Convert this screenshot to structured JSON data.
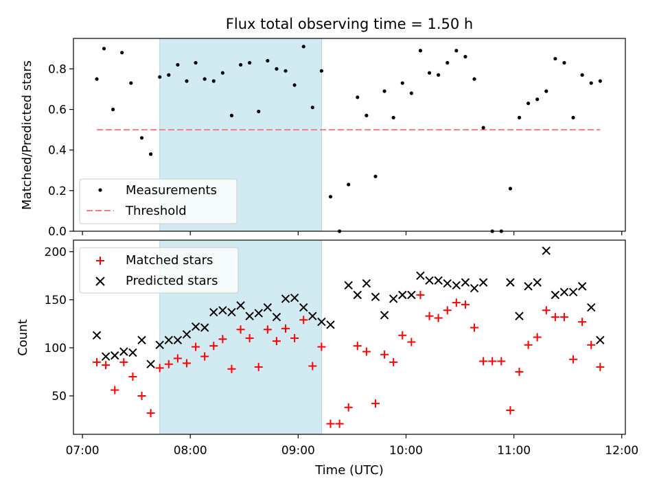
{
  "chart_data": [
    {
      "type": "scatter",
      "title": "Flux total observing time = 1.50 h",
      "ylabel": "Matched/Predicted stars",
      "xlabel": "",
      "ylim": [
        0,
        0.95
      ],
      "yticks": [
        0.0,
        0.2,
        0.4,
        0.6,
        0.8
      ],
      "legend_position": "lower left",
      "shaded_interval": {
        "start": "07:43",
        "end": "09:13",
        "color": "#add8e6"
      },
      "threshold": {
        "name": "Threshold",
        "value": 0.5,
        "x_start": "07:08",
        "x_end": "11:48",
        "color": "#f08080"
      },
      "series": [
        {
          "name": "Measurements",
          "color": "#000000",
          "marker": "dot",
          "points": [
            [
              "07:08",
              0.75
            ],
            [
              "07:12",
              0.9
            ],
            [
              "07:17",
              0.6
            ],
            [
              "07:22",
              0.88
            ],
            [
              "07:27",
              0.73
            ],
            [
              "07:33",
              0.46
            ],
            [
              "07:38",
              0.38
            ],
            [
              "07:43",
              0.76
            ],
            [
              "07:48",
              0.77
            ],
            [
              "07:53",
              0.82
            ],
            [
              "07:58",
              0.74
            ],
            [
              "08:03",
              0.83
            ],
            [
              "08:08",
              0.75
            ],
            [
              "08:13",
              0.74
            ],
            [
              "08:18",
              0.78
            ],
            [
              "08:23",
              0.57
            ],
            [
              "08:28",
              0.82
            ],
            [
              "08:33",
              0.83
            ],
            [
              "08:38",
              0.59
            ],
            [
              "08:43",
              0.84
            ],
            [
              "08:48",
              0.8
            ],
            [
              "08:53",
              0.79
            ],
            [
              "08:58",
              0.72
            ],
            [
              "09:03",
              0.91
            ],
            [
              "09:08",
              0.61
            ],
            [
              "09:13",
              0.79
            ],
            [
              "09:18",
              0.17
            ],
            [
              "09:23",
              0.0
            ],
            [
              "09:28",
              0.23
            ],
            [
              "09:33",
              0.66
            ],
            [
              "09:38",
              0.57
            ],
            [
              "09:43",
              0.27
            ],
            [
              "09:48",
              0.69
            ],
            [
              "09:53",
              0.56
            ],
            [
              "09:58",
              0.73
            ],
            [
              "10:03",
              0.68
            ],
            [
              "10:08",
              0.89
            ],
            [
              "10:13",
              0.78
            ],
            [
              "10:18",
              0.77
            ],
            [
              "10:23",
              0.83
            ],
            [
              "10:28",
              0.89
            ],
            [
              "10:33",
              0.86
            ],
            [
              "10:38",
              0.75
            ],
            [
              "10:43",
              0.51
            ],
            [
              "10:48",
              0.0
            ],
            [
              "10:53",
              0.0
            ],
            [
              "10:58",
              0.21
            ],
            [
              "11:03",
              0.56
            ],
            [
              "11:08",
              0.63
            ],
            [
              "11:13",
              0.65
            ],
            [
              "11:18",
              0.69
            ],
            [
              "11:23",
              0.85
            ],
            [
              "11:28",
              0.83
            ],
            [
              "11:33",
              0.56
            ],
            [
              "11:38",
              0.77
            ],
            [
              "11:43",
              0.73
            ],
            [
              "11:48",
              0.74
            ]
          ]
        }
      ],
      "legend": [
        {
          "label": "Measurements",
          "symbol": "dot",
          "color": "#000000"
        },
        {
          "label": "Threshold",
          "symbol": "dashed-line",
          "color": "#f08080"
        }
      ]
    },
    {
      "type": "scatter",
      "title": "",
      "ylabel": "Count",
      "xlabel": "Time (UTC)",
      "ylim": [
        10,
        212
      ],
      "yticks": [
        50,
        100,
        150,
        200
      ],
      "xlim": [
        "06:55",
        "12:02"
      ],
      "xticks": [
        "07:00",
        "08:00",
        "09:00",
        "10:00",
        "11:00",
        "12:00"
      ],
      "legend_position": "upper left",
      "shaded_interval": {
        "start": "07:43",
        "end": "09:13",
        "color": "#add8e6"
      },
      "series": [
        {
          "name": "Matched stars",
          "color": "#ff0000",
          "marker": "plus",
          "points": [
            [
              "07:08",
              85
            ],
            [
              "07:13",
              82
            ],
            [
              "07:18",
              56
            ],
            [
              "07:23",
              85
            ],
            [
              "07:28",
              70
            ],
            [
              "07:33",
              50
            ],
            [
              "07:38",
              32
            ],
            [
              "07:43",
              79
            ],
            [
              "07:48",
              83
            ],
            [
              "07:53",
              89
            ],
            [
              "07:58",
              84
            ],
            [
              "08:03",
              101
            ],
            [
              "08:08",
              91
            ],
            [
              "08:13",
              102
            ],
            [
              "08:18",
              109
            ],
            [
              "08:23",
              78
            ],
            [
              "08:28",
              119
            ],
            [
              "08:33",
              110
            ],
            [
              "08:38",
              80
            ],
            [
              "08:43",
              119
            ],
            [
              "08:48",
              107
            ],
            [
              "08:53",
              120
            ],
            [
              "08:58",
              110
            ],
            [
              "09:03",
              129
            ],
            [
              "09:08",
              81
            ],
            [
              "09:13",
              101
            ],
            [
              "09:18",
              21
            ],
            [
              "09:23",
              21
            ],
            [
              "09:28",
              38
            ],
            [
              "09:33",
              102
            ],
            [
              "09:38",
              96
            ],
            [
              "09:43",
              42
            ],
            [
              "09:48",
              93
            ],
            [
              "09:53",
              85
            ],
            [
              "09:58",
              113
            ],
            [
              "10:03",
              106
            ],
            [
              "10:08",
              155
            ],
            [
              "10:13",
              133
            ],
            [
              "10:18",
              131
            ],
            [
              "10:23",
              139
            ],
            [
              "10:28",
              147
            ],
            [
              "10:33",
              145
            ],
            [
              "10:38",
              121
            ],
            [
              "10:43",
              86
            ],
            [
              "10:48",
              86
            ],
            [
              "10:53",
              86
            ],
            [
              "10:58",
              35
            ],
            [
              "11:03",
              75
            ],
            [
              "11:08",
              103
            ],
            [
              "11:13",
              111
            ],
            [
              "11:18",
              139
            ],
            [
              "11:23",
              132
            ],
            [
              "11:28",
              132
            ],
            [
              "11:33",
              88
            ],
            [
              "11:38",
              127
            ],
            [
              "11:43",
              103
            ],
            [
              "11:48",
              80
            ]
          ]
        },
        {
          "name": "Predicted stars",
          "color": "#000000",
          "marker": "x",
          "points": [
            [
              "07:08",
              113
            ],
            [
              "07:13",
              91
            ],
            [
              "07:18",
              92
            ],
            [
              "07:23",
              96
            ],
            [
              "07:28",
              95
            ],
            [
              "07:33",
              108
            ],
            [
              "07:38",
              83
            ],
            [
              "07:43",
              103
            ],
            [
              "07:48",
              108
            ],
            [
              "07:53",
              108
            ],
            [
              "07:58",
              114
            ],
            [
              "08:03",
              122
            ],
            [
              "08:08",
              121
            ],
            [
              "08:13",
              137
            ],
            [
              "08:18",
              139
            ],
            [
              "08:23",
              137
            ],
            [
              "08:28",
              144
            ],
            [
              "08:33",
              133
            ],
            [
              "08:38",
              136
            ],
            [
              "08:43",
              142
            ],
            [
              "08:48",
              132
            ],
            [
              "08:53",
              151
            ],
            [
              "08:58",
              152
            ],
            [
              "09:03",
              142
            ],
            [
              "09:08",
              133
            ],
            [
              "09:13",
              127
            ],
            [
              "09:18",
              124
            ],
            [
              "09:28",
              165
            ],
            [
              "09:33",
              155
            ],
            [
              "09:38",
              167
            ],
            [
              "09:43",
              153
            ],
            [
              "09:48",
              134
            ],
            [
              "09:53",
              151
            ],
            [
              "09:58",
              155
            ],
            [
              "10:03",
              155
            ],
            [
              "10:08",
              175
            ],
            [
              "10:13",
              170
            ],
            [
              "10:18",
              170
            ],
            [
              "10:23",
              167
            ],
            [
              "10:28",
              165
            ],
            [
              "10:33",
              168
            ],
            [
              "10:38",
              162
            ],
            [
              "10:43",
              168
            ],
            [
              "10:58",
              168
            ],
            [
              "11:03",
              133
            ],
            [
              "11:08",
              164
            ],
            [
              "11:13",
              168
            ],
            [
              "11:18",
              201
            ],
            [
              "11:23",
              155
            ],
            [
              "11:28",
              158
            ],
            [
              "11:33",
              158
            ],
            [
              "11:38",
              164
            ],
            [
              "11:43",
              142
            ],
            [
              "11:48",
              108
            ]
          ]
        }
      ],
      "legend": [
        {
          "label": "Matched stars",
          "symbol": "plus",
          "color": "#ff0000"
        },
        {
          "label": "Predicted stars",
          "symbol": "x",
          "color": "#000000"
        }
      ]
    }
  ]
}
